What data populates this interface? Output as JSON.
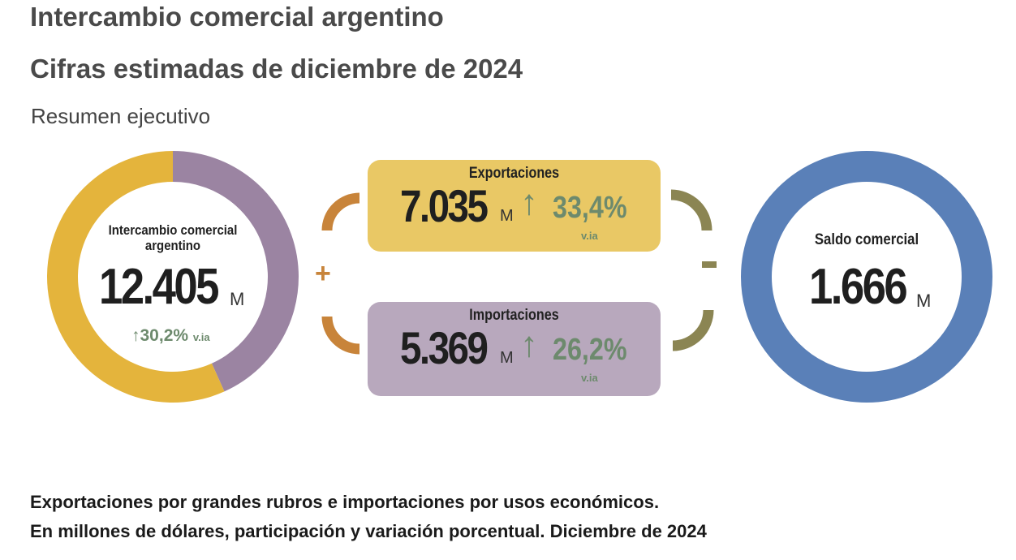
{
  "header": {
    "title": "Intercambio comercial argentino",
    "subtitle": "Cifras estimadas de diciembre de 2024",
    "section": "Resumen ejecutivo"
  },
  "chart_data": [
    {
      "type": "pie",
      "title": "Intercambio comercial argentino",
      "total": "12.405",
      "unit": "M",
      "variation": "30,2%",
      "variation_label": "v.ia",
      "categories": [
        "Importaciones",
        "Exportaciones"
      ],
      "values": [
        5369,
        7035
      ],
      "colors": [
        "#9b84a2",
        "#e4b43c"
      ]
    },
    {
      "type": "pie",
      "title": "Saldo comercial",
      "total": "1.666",
      "unit": "M",
      "categories": [
        "Saldo comercial"
      ],
      "values": [
        1666
      ],
      "colors": [
        "#5a80b8"
      ]
    }
  ],
  "exports": {
    "label": "Exportaciones",
    "value": "7.035",
    "unit": "M",
    "variation": "33,4%",
    "variation_label": "v.ia",
    "color": "#e9c865"
  },
  "imports": {
    "label": "Importaciones",
    "value": "5.369",
    "unit": "M",
    "variation": "26,2%",
    "variation_label": "v.ia",
    "color": "#b8a8bd"
  },
  "operators": {
    "plus": "+",
    "minus": "-"
  },
  "arrow": "↑",
  "footer": {
    "line1": "Exportaciones por grandes rubros e importaciones por usos económicos.",
    "line2": "En millones de dólares, participación y variación porcentual. Diciembre de 2024"
  }
}
